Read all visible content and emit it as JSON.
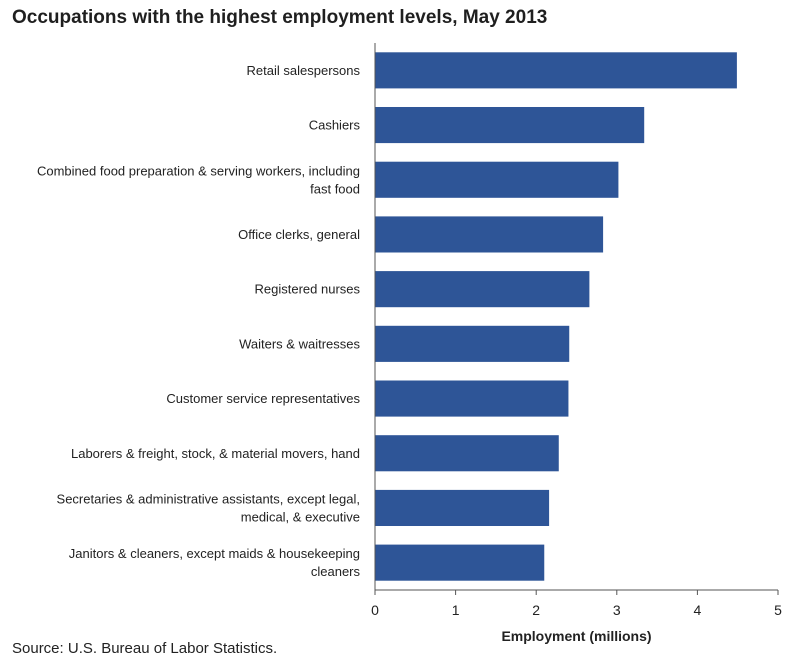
{
  "chart_data": {
    "type": "bar",
    "orientation": "horizontal",
    "title": "Occupations with the highest employment levels, May 2013",
    "xlabel": "Employment (millions)",
    "ylabel": "",
    "xlim": [
      0,
      5
    ],
    "xticks": [
      0,
      1,
      2,
      3,
      4,
      5
    ],
    "grid": false,
    "bar_color": "#2e5597",
    "categories": [
      "Retail salespersons",
      "Cashiers",
      "Combined food preparation & serving workers, including fast food",
      "Office clerks, general",
      "Registered nurses",
      "Waiters & waitresses",
      "Customer service representatives",
      "Laborers & freight, stock, & material movers, hand",
      "Secretaries & administrative assistants, except legal, medical, & executive",
      "Janitors & cleaners, except maids & housekeeping cleaners"
    ],
    "category_lines": [
      [
        "Retail salespersons"
      ],
      [
        "Cashiers"
      ],
      [
        "Combined food preparation & serving workers, including",
        "fast food"
      ],
      [
        "Office clerks, general"
      ],
      [
        "Registered nurses"
      ],
      [
        "Waiters & waitresses"
      ],
      [
        "Customer service representatives"
      ],
      [
        "Laborers & freight, stock, & material movers, hand"
      ],
      [
        "Secretaries & administrative assistants, except legal,",
        "medical, & executive"
      ],
      [
        "Janitors & cleaners, except maids & housekeeping",
        "cleaners"
      ]
    ],
    "values": [
      4.49,
      3.34,
      3.02,
      2.83,
      2.66,
      2.41,
      2.4,
      2.28,
      2.16,
      2.1
    ]
  },
  "source": "Source: U.S. Bureau of Labor Statistics."
}
